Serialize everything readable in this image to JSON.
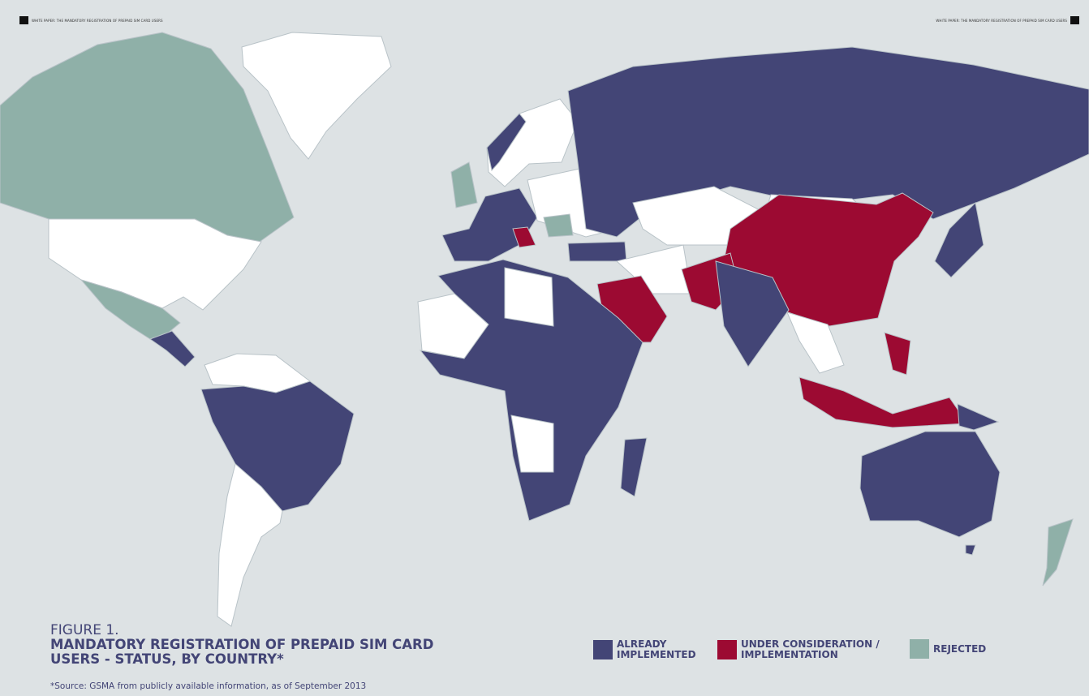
{
  "header": {
    "left_text": "WHITE PAPER: THE MANDATORY REGISTRATION OF PREPAID SIM CARD USERS",
    "right_text": "WHITE PAPER: THE MANDATORY REGISTRATION OF PREPAID SIM CARD USERS"
  },
  "figure": {
    "number": "FIGURE 1.",
    "title": "MANDATORY REGISTRATION OF PREPAID SIM CARD USERS - STATUS, BY COUNTRY*",
    "source": "*Source: GSMA from publicly available information, as of September 2013"
  },
  "legend": [
    {
      "key": "implemented",
      "label": "ALREADY IMPLEMENTED",
      "color": "#434576"
    },
    {
      "key": "consideration",
      "label": "UNDER CONSIDERATION / IMPLEMENTATION",
      "color": "#9c0a32"
    },
    {
      "key": "rejected",
      "label": "REJECTED",
      "color": "#8fb0a8"
    }
  ],
  "colors": {
    "background": "#dde2e4",
    "no_data": "#ffffff",
    "implemented": "#434576",
    "consideration": "#9c0a32",
    "rejected": "#8fb0a8"
  }
}
